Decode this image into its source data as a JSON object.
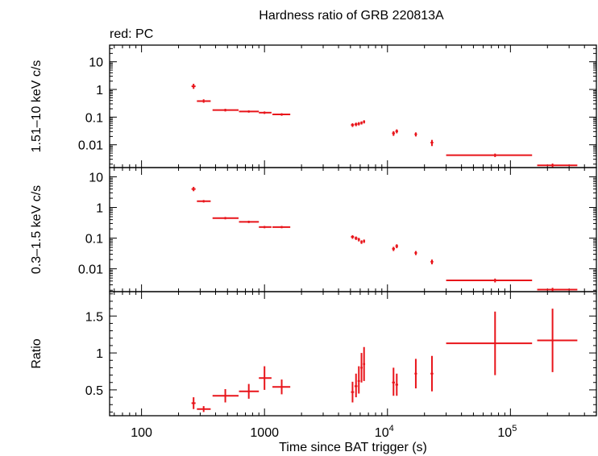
{
  "title": "Hardness ratio of GRB 220813A",
  "subtitle": "red: PC",
  "colors": {
    "series": "#e8141a",
    "axis": "#000000"
  },
  "chart_data": [
    {
      "type": "scatter",
      "ylabel": "1.51–10 keV c/s",
      "yscale": "log",
      "ylim": [
        0.0015,
        40
      ],
      "yticks": [
        {
          "v": 10,
          "label": "10"
        },
        {
          "v": 1,
          "label": "1"
        },
        {
          "v": 0.1,
          "label": "0.1"
        },
        {
          "v": 0.01,
          "label": "0.01"
        }
      ],
      "points": [
        {
          "x": 265,
          "xlo": 255,
          "xhi": 275,
          "y": 1.3,
          "ylo": 1.05,
          "yhi": 1.6
        },
        {
          "x": 320,
          "xlo": 282,
          "xhi": 365,
          "y": 0.38,
          "ylo": 0.33,
          "yhi": 0.44
        },
        {
          "x": 480,
          "xlo": 378,
          "xhi": 615,
          "y": 0.18,
          "ylo": 0.16,
          "yhi": 0.2
        },
        {
          "x": 745,
          "xlo": 620,
          "xhi": 900,
          "y": 0.16,
          "ylo": 0.145,
          "yhi": 0.175
        },
        {
          "x": 1000,
          "xlo": 900,
          "xhi": 1140,
          "y": 0.145,
          "ylo": 0.13,
          "yhi": 0.16
        },
        {
          "x": 1380,
          "xlo": 1160,
          "xhi": 1620,
          "y": 0.125,
          "ylo": 0.112,
          "yhi": 0.138
        },
        {
          "x": 5200,
          "xlo": 5050,
          "xhi": 5350,
          "y": 0.052,
          "ylo": 0.044,
          "yhi": 0.06
        },
        {
          "x": 5550,
          "xlo": 5400,
          "xhi": 5700,
          "y": 0.055,
          "ylo": 0.047,
          "yhi": 0.063
        },
        {
          "x": 5850,
          "xlo": 5720,
          "xhi": 5980,
          "y": 0.058,
          "ylo": 0.05,
          "yhi": 0.066
        },
        {
          "x": 6150,
          "xlo": 6020,
          "xhi": 6280,
          "y": 0.062,
          "ylo": 0.054,
          "yhi": 0.07
        },
        {
          "x": 6450,
          "xlo": 6320,
          "xhi": 6580,
          "y": 0.068,
          "ylo": 0.059,
          "yhi": 0.077
        },
        {
          "x": 11200,
          "xlo": 10900,
          "xhi": 11500,
          "y": 0.026,
          "ylo": 0.021,
          "yhi": 0.031
        },
        {
          "x": 11900,
          "xlo": 11600,
          "xhi": 12200,
          "y": 0.031,
          "ylo": 0.026,
          "yhi": 0.036
        },
        {
          "x": 17000,
          "xlo": 16600,
          "xhi": 17400,
          "y": 0.024,
          "ylo": 0.02,
          "yhi": 0.028
        },
        {
          "x": 23000,
          "xlo": 22400,
          "xhi": 23600,
          "y": 0.012,
          "ylo": 0.009,
          "yhi": 0.015
        },
        {
          "x": 75000,
          "xlo": 30000,
          "xhi": 150000,
          "y": 0.0042,
          "ylo": 0.0036,
          "yhi": 0.0048
        },
        {
          "x": 220000,
          "xlo": 165000,
          "xhi": 350000,
          "y": 0.0018,
          "ylo": 0.0015,
          "yhi": 0.0021
        }
      ]
    },
    {
      "type": "scatter",
      "ylabel": "0.3–1.5 keV c/s",
      "yscale": "log",
      "ylim": [
        0.0018,
        20
      ],
      "yticks": [
        {
          "v": 10,
          "label": "10"
        },
        {
          "v": 1,
          "label": "1"
        },
        {
          "v": 0.1,
          "label": "0.1"
        },
        {
          "v": 0.01,
          "label": "0.01"
        }
      ],
      "points": [
        {
          "x": 265,
          "xlo": 255,
          "xhi": 275,
          "y": 4.0,
          "ylo": 3.4,
          "yhi": 4.7
        },
        {
          "x": 320,
          "xlo": 282,
          "xhi": 365,
          "y": 1.6,
          "ylo": 1.45,
          "yhi": 1.75
        },
        {
          "x": 480,
          "xlo": 378,
          "xhi": 615,
          "y": 0.45,
          "ylo": 0.41,
          "yhi": 0.49
        },
        {
          "x": 745,
          "xlo": 620,
          "xhi": 900,
          "y": 0.34,
          "ylo": 0.31,
          "yhi": 0.37
        },
        {
          "x": 1000,
          "xlo": 900,
          "xhi": 1140,
          "y": 0.23,
          "ylo": 0.21,
          "yhi": 0.25
        },
        {
          "x": 1380,
          "xlo": 1160,
          "xhi": 1620,
          "y": 0.23,
          "ylo": 0.21,
          "yhi": 0.25
        },
        {
          "x": 5200,
          "xlo": 5050,
          "xhi": 5350,
          "y": 0.11,
          "ylo": 0.095,
          "yhi": 0.125
        },
        {
          "x": 5550,
          "xlo": 5400,
          "xhi": 5700,
          "y": 0.1,
          "ylo": 0.087,
          "yhi": 0.113
        },
        {
          "x": 5850,
          "xlo": 5720,
          "xhi": 5980,
          "y": 0.09,
          "ylo": 0.078,
          "yhi": 0.102
        },
        {
          "x": 6150,
          "xlo": 6020,
          "xhi": 6280,
          "y": 0.075,
          "ylo": 0.065,
          "yhi": 0.085
        },
        {
          "x": 6450,
          "xlo": 6320,
          "xhi": 6580,
          "y": 0.08,
          "ylo": 0.07,
          "yhi": 0.09
        },
        {
          "x": 11200,
          "xlo": 10900,
          "xhi": 11500,
          "y": 0.045,
          "ylo": 0.038,
          "yhi": 0.052
        },
        {
          "x": 11900,
          "xlo": 11600,
          "xhi": 12200,
          "y": 0.055,
          "ylo": 0.047,
          "yhi": 0.063
        },
        {
          "x": 17000,
          "xlo": 16600,
          "xhi": 17400,
          "y": 0.033,
          "ylo": 0.028,
          "yhi": 0.038
        },
        {
          "x": 23000,
          "xlo": 22400,
          "xhi": 23600,
          "y": 0.017,
          "ylo": 0.014,
          "yhi": 0.02
        },
        {
          "x": 75000,
          "xlo": 30000,
          "xhi": 150000,
          "y": 0.0042,
          "ylo": 0.0036,
          "yhi": 0.0048
        },
        {
          "x": 220000,
          "xlo": 165000,
          "xhi": 350000,
          "y": 0.0021,
          "ylo": 0.0018,
          "yhi": 0.0024
        }
      ]
    },
    {
      "type": "scatter",
      "ylabel": "Ratio",
      "yscale": "linear",
      "ylim": [
        0.15,
        1.83
      ],
      "yticks": [
        {
          "v": 0.5,
          "label": "0.5"
        },
        {
          "v": 1,
          "label": "1"
        },
        {
          "v": 1.5,
          "label": "1.5"
        }
      ],
      "xlabel": "Time since BAT trigger (s)",
      "xscale": "log",
      "xlim": [
        55,
        500000
      ],
      "xticks": [
        {
          "v": 100,
          "label": "100",
          "kind": "plain"
        },
        {
          "v": 1000,
          "label": "1000",
          "kind": "plain"
        },
        {
          "v": 10000,
          "label": "10",
          "exp": "4",
          "kind": "pow"
        },
        {
          "v": 100000,
          "label": "10",
          "exp": "5",
          "kind": "pow"
        }
      ],
      "points": [
        {
          "x": 265,
          "xlo": 255,
          "xhi": 275,
          "y": 0.32,
          "ylo": 0.24,
          "yhi": 0.4
        },
        {
          "x": 320,
          "xlo": 282,
          "xhi": 365,
          "y": 0.24,
          "ylo": 0.2,
          "yhi": 0.28
        },
        {
          "x": 480,
          "xlo": 378,
          "xhi": 615,
          "y": 0.42,
          "ylo": 0.33,
          "yhi": 0.51
        },
        {
          "x": 745,
          "xlo": 620,
          "xhi": 900,
          "y": 0.48,
          "ylo": 0.38,
          "yhi": 0.58
        },
        {
          "x": 1000,
          "xlo": 900,
          "xhi": 1140,
          "y": 0.66,
          "ylo": 0.5,
          "yhi": 0.82
        },
        {
          "x": 1380,
          "xlo": 1160,
          "xhi": 1620,
          "y": 0.54,
          "ylo": 0.44,
          "yhi": 0.64
        },
        {
          "x": 5200,
          "xlo": 5050,
          "xhi": 5350,
          "y": 0.47,
          "ylo": 0.33,
          "yhi": 0.61
        },
        {
          "x": 5550,
          "xlo": 5400,
          "xhi": 5700,
          "y": 0.55,
          "ylo": 0.4,
          "yhi": 0.72
        },
        {
          "x": 5850,
          "xlo": 5720,
          "xhi": 5980,
          "y": 0.62,
          "ylo": 0.45,
          "yhi": 0.82
        },
        {
          "x": 6150,
          "xlo": 6020,
          "xhi": 6280,
          "y": 0.8,
          "ylo": 0.6,
          "yhi": 1.0
        },
        {
          "x": 6450,
          "xlo": 6320,
          "xhi": 6580,
          "y": 0.85,
          "ylo": 0.62,
          "yhi": 1.08
        },
        {
          "x": 11200,
          "xlo": 10900,
          "xhi": 11500,
          "y": 0.6,
          "ylo": 0.42,
          "yhi": 0.8
        },
        {
          "x": 11900,
          "xlo": 11600,
          "xhi": 12200,
          "y": 0.57,
          "ylo": 0.42,
          "yhi": 0.72
        },
        {
          "x": 17000,
          "xlo": 16600,
          "xhi": 17400,
          "y": 0.72,
          "ylo": 0.52,
          "yhi": 0.92
        },
        {
          "x": 23000,
          "xlo": 22400,
          "xhi": 23600,
          "y": 0.72,
          "ylo": 0.48,
          "yhi": 0.96
        },
        {
          "x": 75000,
          "xlo": 30000,
          "xhi": 150000,
          "y": 1.13,
          "ylo": 0.7,
          "yhi": 1.56
        },
        {
          "x": 220000,
          "xlo": 165000,
          "xhi": 350000,
          "y": 1.17,
          "ylo": 0.74,
          "yhi": 1.6
        }
      ]
    }
  ]
}
